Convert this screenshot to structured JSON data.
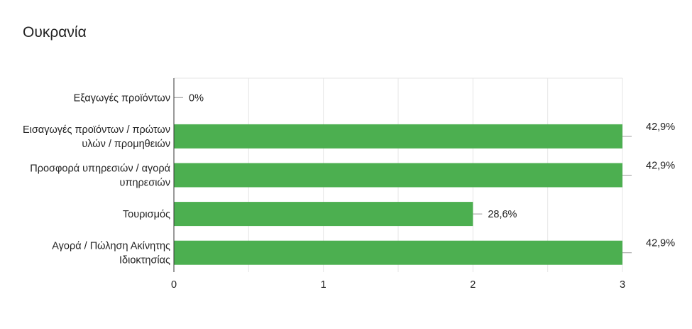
{
  "chart_data": {
    "type": "bar",
    "orientation": "horizontal",
    "title": "Ουκρανία",
    "categories": [
      [
        "Εξαγωγές προϊόντων"
      ],
      [
        "Εισαγωγές προϊόντων / πρώτων",
        "υλών / προμηθειών"
      ],
      [
        "Προσφορά υπηρεσιών / αγορά",
        "υπηρεσιών"
      ],
      [
        "Τουρισμός"
      ],
      [
        "Αγορά / Πώληση Ακίνητης",
        "Ιδιοκτησίας"
      ]
    ],
    "values": [
      0,
      3,
      3,
      2,
      3
    ],
    "value_labels": [
      "0%",
      "42,9%",
      "42,9%",
      "28,6%",
      "42,9%"
    ],
    "xlim": [
      0,
      3
    ],
    "xticks": [
      "0",
      "1",
      "2",
      "3"
    ],
    "grid": true,
    "bar_color": "#4caf50"
  }
}
